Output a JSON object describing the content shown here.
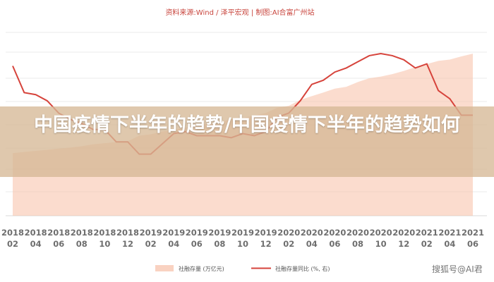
{
  "source_text": "资料来源:Wind / 泽平宏观  |  制图:AI合富广州站",
  "banner_title": "中国疫情下半年的趋势/中国疫情下半年的趋势如何",
  "watermark": "搜狐号@AI君",
  "colors": {
    "area": "#f7bfa6",
    "line": "#d6433b",
    "banner": "#d6b996"
  },
  "chart_data": {
    "type": "area+line",
    "x_ticks": [
      [
        "2018",
        "02"
      ],
      [
        "2018",
        "04"
      ],
      [
        "2018",
        "06"
      ],
      [
        "2018",
        "08"
      ],
      [
        "2018",
        "10"
      ],
      [
        "2018",
        "12"
      ],
      [
        "2019",
        "02"
      ],
      [
        "2019",
        "04"
      ],
      [
        "2019",
        "06"
      ],
      [
        "2019",
        "08"
      ],
      [
        "2019",
        "10"
      ],
      [
        "2019",
        "12"
      ],
      [
        "2020",
        "02"
      ],
      [
        "2020",
        "04"
      ],
      [
        "2020",
        "06"
      ],
      [
        "2020",
        "08"
      ],
      [
        "2020",
        "10"
      ],
      [
        "2020",
        "12"
      ],
      [
        "2021",
        "02"
      ],
      [
        "2021",
        "04"
      ],
      [
        "2021",
        "06"
      ]
    ],
    "x_months": [
      "2018-01",
      "2018-02",
      "2018-03",
      "2018-04",
      "2018-05",
      "2018-06",
      "2018-07",
      "2018-08",
      "2018-09",
      "2018-10",
      "2018-11",
      "2018-12",
      "2019-01",
      "2019-02",
      "2019-03",
      "2019-04",
      "2019-05",
      "2019-06",
      "2019-07",
      "2019-08",
      "2019-09",
      "2019-10",
      "2019-11",
      "2019-12",
      "2020-01",
      "2020-02",
      "2020-03",
      "2020-04",
      "2020-05",
      "2020-06",
      "2020-07",
      "2020-08",
      "2020-09",
      "2020-10",
      "2020-11",
      "2020-12",
      "2021-01",
      "2021-02",
      "2021-03",
      "2021-04",
      "2021-05",
      "2021-06"
    ],
    "series": [
      {
        "name": "社融存量 (万亿元)",
        "axis": "left",
        "type": "area",
        "values": [
          172.8,
          174.2,
          175.3,
          176.2,
          177.1,
          178.2,
          179.0,
          180.2,
          181.9,
          182.8,
          183.8,
          184.5,
          189.4,
          190.5,
          192.9,
          194.2,
          196.3,
          198.8,
          199.6,
          201.2,
          203.6,
          204.7,
          206.8,
          209.0,
          213.6,
          215.2,
          220.4,
          223.6,
          226.7,
          230.1,
          231.7,
          235.8,
          239.1,
          240.5,
          242.7,
          245.4,
          248.8,
          251.4,
          254.1,
          255.3,
          258.0,
          260.4
        ]
      },
      {
        "name": "社融存量同比 (%, 右)",
        "axis": "right",
        "type": "line",
        "values": [
          12.6,
          12.3,
          11.0,
          10.9,
          10.6,
          10.0,
          9.7,
          9.5,
          9.2,
          9.2,
          8.6,
          8.6,
          8.0,
          8.0,
          8.5,
          9.0,
          9.1,
          8.9,
          8.9,
          8.9,
          8.8,
          9.0,
          8.9,
          9.1,
          9.8,
          10.0,
          10.6,
          11.4,
          11.6,
          12.0,
          12.2,
          12.5,
          12.8,
          12.9,
          12.8,
          12.6,
          12.2,
          12.4,
          11.1,
          10.7,
          9.9,
          9.9
        ]
      }
    ]
  }
}
